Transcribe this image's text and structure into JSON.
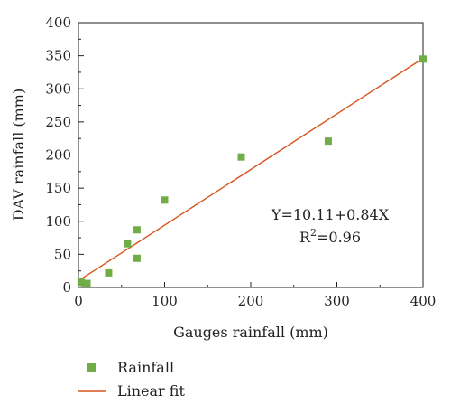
{
  "chart_data": {
    "type": "scatter",
    "xlabel": "Gauges rainfall (mm)",
    "ylabel": "DAV rainfall (mm)",
    "xlim": [
      0,
      400
    ],
    "ylim": [
      0,
      400
    ],
    "xticks": [
      "0",
      "100",
      "200",
      "300",
      "400"
    ],
    "yticks": [
      "0",
      "50",
      "100",
      "150",
      "200",
      "250",
      "300",
      "350",
      "400"
    ],
    "grid": false,
    "legend_position": "bottom-left",
    "series": [
      {
        "name": "Rainfall",
        "kind": "scatter",
        "color": "#70ad47",
        "points": [
          [
            3,
            8
          ],
          [
            7,
            6
          ],
          [
            10,
            6
          ],
          [
            35,
            22
          ],
          [
            57,
            66
          ],
          [
            68,
            87
          ],
          [
            68,
            44
          ],
          [
            100,
            132
          ],
          [
            189,
            197
          ],
          [
            290,
            221
          ],
          [
            400,
            345
          ]
        ]
      },
      {
        "name": "Linear fit",
        "kind": "line",
        "color": "#d9531e",
        "intercept": 10.11,
        "slope": 0.84
      }
    ],
    "annotations": {
      "equation": "Y=10.11+0.84X",
      "r2_prefix": "R",
      "r2_sup": "2",
      "r2_value": "=0.96"
    }
  }
}
